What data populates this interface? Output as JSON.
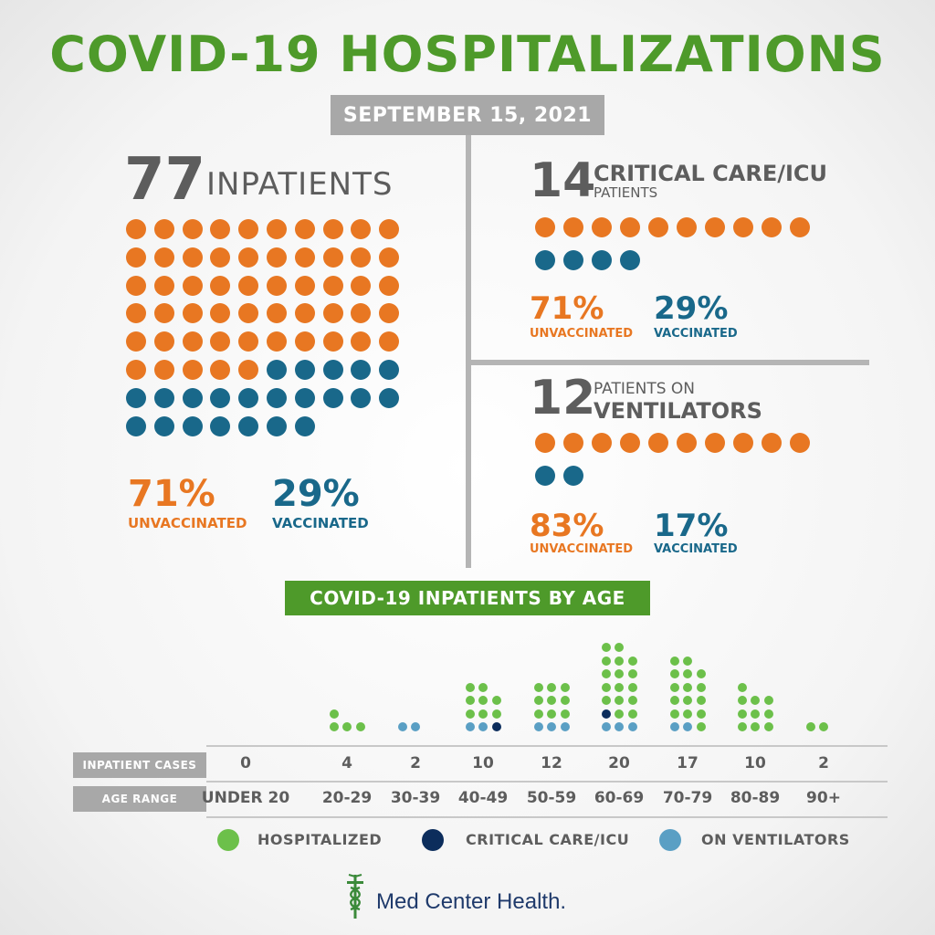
{
  "title": "COVID-19 HOSPITALIZATIONS",
  "date": "SEPTEMBER 15, 2021",
  "colors": {
    "unvaccinated": "#e87722",
    "vaccinated": "#19688a",
    "green": "#4e9a2a",
    "hospitalized": "#6cc04a",
    "critical_care": "#0c2d5c",
    "ventilators": "#5a9fc4",
    "brand": "#1f3a6b"
  },
  "inpatients": {
    "count": "77",
    "label": "INPATIENTS",
    "unvaccinated_count": 55,
    "vaccinated_count": 22,
    "unvaccinated_pct": "71%",
    "unvaccinated_label": "UNVACCINATED",
    "vaccinated_pct": "29%",
    "vaccinated_label": "VACCINATED"
  },
  "icu": {
    "count": "14",
    "label_line1": "CRITICAL CARE/ICU",
    "label_line2": "PATIENTS",
    "unvaccinated_count": 10,
    "vaccinated_count": 4,
    "unvaccinated_pct": "71%",
    "unvaccinated_label": "UNVACCINATED",
    "vaccinated_pct": "29%",
    "vaccinated_label": "VACCINATED"
  },
  "ventilators": {
    "count": "12",
    "label_line1": "PATIENTS ON",
    "label_line2": "VENTILATORS",
    "unvaccinated_count": 10,
    "vaccinated_count": 2,
    "unvaccinated_pct": "83%",
    "unvaccinated_label": "UNVACCINATED",
    "vaccinated_pct": "17%",
    "vaccinated_label": "VACCINATED"
  },
  "age_section": {
    "title": "COVID-19 INPATIENTS BY AGE",
    "cases_header": "INPATIENT CASES",
    "age_header": "AGE RANGE"
  },
  "legend": {
    "hospitalized": "HOSPITALIZED",
    "critical_care": "CRITICAL CARE/ICU",
    "ventilators": "ON VENTILATORS"
  },
  "brand": {
    "name": "Med Center Health.",
    "logo_icon": "caduceus-icon"
  },
  "chart_data": {
    "type": "bar",
    "categories": [
      "UNDER 20",
      "20-29",
      "30-39",
      "40-49",
      "50-59",
      "60-69",
      "70-79",
      "80-89",
      "90+"
    ],
    "cases_labels": [
      "0",
      "4",
      "2",
      "10",
      "12",
      "20",
      "17",
      "10",
      "2"
    ],
    "series": [
      {
        "name": "HOSPITALIZED",
        "values": [
          0,
          4,
          0,
          8,
          9,
          16,
          15,
          10,
          2
        ]
      },
      {
        "name": "CRITICAL CARE/ICU",
        "values": [
          0,
          0,
          0,
          1,
          0,
          1,
          0,
          0,
          0
        ]
      },
      {
        "name": "ON VENTILATORS",
        "values": [
          0,
          0,
          2,
          2,
          3,
          3,
          2,
          0,
          0
        ]
      }
    ]
  }
}
